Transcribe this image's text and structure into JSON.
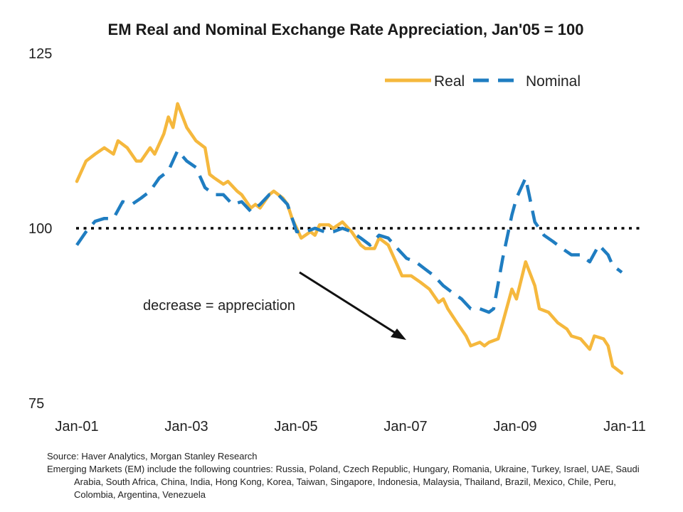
{
  "chart_data": {
    "type": "line",
    "title": "EM Real and Nominal Exchange Rate Appreciation, Jan'05 = 100",
    "xlabel": "",
    "ylabel": "",
    "x_ticks": [
      "Jan-01",
      "Jan-03",
      "Jan-05",
      "Jan-07",
      "Jan-09",
      "Jan-11"
    ],
    "xlim": [
      "Jan-01",
      "Jan-11"
    ],
    "y_ticks": [
      "75",
      "100",
      "125"
    ],
    "ylim": [
      75,
      125
    ],
    "reference_line": {
      "value": 100,
      "style": "dotted",
      "color": "#000000"
    },
    "legend": {
      "position": "top-right",
      "entries": [
        "Real",
        "Nominal"
      ]
    },
    "annotation": {
      "text": "decrease = appreciation",
      "arrow": "pointing down-right"
    },
    "series": [
      {
        "name": "Real",
        "color": "#F5B83D",
        "style": "solid",
        "points": [
          [
            "2001-01",
            106.7
          ],
          [
            "2001-03",
            109.6
          ],
          [
            "2001-05",
            110.6
          ],
          [
            "2001-07",
            111.5
          ],
          [
            "2001-09",
            110.6
          ],
          [
            "2001-10",
            112.5
          ],
          [
            "2001-12",
            111.5
          ],
          [
            "2002-02",
            109.6
          ],
          [
            "2002-03",
            109.6
          ],
          [
            "2002-05",
            111.5
          ],
          [
            "2002-06",
            110.6
          ],
          [
            "2002-08",
            113.5
          ],
          [
            "2002-09",
            115.9
          ],
          [
            "2002-10",
            114.4
          ],
          [
            "2002-11",
            117.8
          ],
          [
            "2003-01",
            114.4
          ],
          [
            "2003-03",
            112.5
          ],
          [
            "2003-05",
            111.5
          ],
          [
            "2003-06",
            107.7
          ],
          [
            "2003-07",
            107.2
          ],
          [
            "2003-09",
            106.3
          ],
          [
            "2003-10",
            106.7
          ],
          [
            "2003-12",
            105.3
          ],
          [
            "2004-01",
            104.8
          ],
          [
            "2004-03",
            102.9
          ],
          [
            "2004-04",
            103.4
          ],
          [
            "2004-05",
            102.9
          ],
          [
            "2004-07",
            104.8
          ],
          [
            "2004-08",
            105.3
          ],
          [
            "2004-10",
            104.3
          ],
          [
            "2004-11",
            103.4
          ],
          [
            "2004-12",
            101.4
          ],
          [
            "2005-01",
            100.0
          ],
          [
            "2005-02",
            98.6
          ],
          [
            "2005-04",
            99.5
          ],
          [
            "2005-05",
            99.0
          ],
          [
            "2005-06",
            100.5
          ],
          [
            "2005-08",
            100.5
          ],
          [
            "2005-09",
            100.0
          ],
          [
            "2005-11",
            100.9
          ],
          [
            "2006-01",
            99.5
          ],
          [
            "2006-03",
            97.6
          ],
          [
            "2006-04",
            97.1
          ],
          [
            "2006-06",
            97.1
          ],
          [
            "2006-07",
            98.6
          ],
          [
            "2006-09",
            97.6
          ],
          [
            "2006-11",
            94.7
          ],
          [
            "2006-12",
            93.2
          ],
          [
            "2007-02",
            93.2
          ],
          [
            "2007-04",
            92.3
          ],
          [
            "2007-06",
            91.3
          ],
          [
            "2007-08",
            89.4
          ],
          [
            "2007-09",
            89.9
          ],
          [
            "2007-10",
            88.5
          ],
          [
            "2007-12",
            86.5
          ],
          [
            "2008-02",
            84.6
          ],
          [
            "2008-03",
            83.2
          ],
          [
            "2008-05",
            83.7
          ],
          [
            "2008-06",
            83.2
          ],
          [
            "2008-07",
            83.7
          ],
          [
            "2008-09",
            84.2
          ],
          [
            "2008-10",
            86.5
          ],
          [
            "2008-12",
            91.3
          ],
          [
            "2009-01",
            89.9
          ],
          [
            "2009-03",
            95.2
          ],
          [
            "2009-05",
            91.8
          ],
          [
            "2009-06",
            88.5
          ],
          [
            "2009-08",
            88.0
          ],
          [
            "2009-10",
            86.5
          ],
          [
            "2009-12",
            85.6
          ],
          [
            "2010-01",
            84.6
          ],
          [
            "2010-03",
            84.2
          ],
          [
            "2010-05",
            82.7
          ],
          [
            "2010-06",
            84.6
          ],
          [
            "2010-08",
            84.2
          ],
          [
            "2010-09",
            83.2
          ],
          [
            "2010-10",
            80.3
          ],
          [
            "2010-12",
            79.3
          ]
        ]
      },
      {
        "name": "Nominal",
        "color": "#1F7DC1",
        "style": "dashed",
        "points": [
          [
            "2001-01",
            97.6
          ],
          [
            "2001-03",
            99.5
          ],
          [
            "2001-05",
            101.0
          ],
          [
            "2001-07",
            101.4
          ],
          [
            "2001-09",
            101.4
          ],
          [
            "2001-11",
            103.8
          ],
          [
            "2002-01",
            103.4
          ],
          [
            "2002-03",
            104.3
          ],
          [
            "2002-05",
            105.3
          ],
          [
            "2002-07",
            107.2
          ],
          [
            "2002-09",
            108.2
          ],
          [
            "2002-11",
            111.1
          ],
          [
            "2003-01",
            109.6
          ],
          [
            "2003-03",
            108.7
          ],
          [
            "2003-05",
            105.8
          ],
          [
            "2003-07",
            104.8
          ],
          [
            "2003-09",
            104.8
          ],
          [
            "2003-11",
            103.4
          ],
          [
            "2004-01",
            103.8
          ],
          [
            "2004-03",
            102.4
          ],
          [
            "2004-05",
            103.4
          ],
          [
            "2004-07",
            104.8
          ],
          [
            "2004-09",
            104.8
          ],
          [
            "2004-11",
            103.4
          ],
          [
            "2005-01",
            99.5
          ],
          [
            "2005-03",
            99.5
          ],
          [
            "2005-05",
            100.0
          ],
          [
            "2005-07",
            99.5
          ],
          [
            "2005-09",
            99.5
          ],
          [
            "2005-11",
            100.0
          ],
          [
            "2006-01",
            99.5
          ],
          [
            "2006-03",
            98.6
          ],
          [
            "2006-05",
            97.6
          ],
          [
            "2006-07",
            99.0
          ],
          [
            "2006-09",
            98.6
          ],
          [
            "2006-11",
            97.1
          ],
          [
            "2007-01",
            95.7
          ],
          [
            "2007-03",
            95.2
          ],
          [
            "2007-05",
            94.2
          ],
          [
            "2007-07",
            93.2
          ],
          [
            "2007-09",
            91.8
          ],
          [
            "2007-11",
            90.8
          ],
          [
            "2008-01",
            89.9
          ],
          [
            "2008-03",
            88.5
          ],
          [
            "2008-05",
            88.5
          ],
          [
            "2008-07",
            88.0
          ],
          [
            "2008-08",
            88.5
          ],
          [
            "2008-10",
            95.7
          ],
          [
            "2008-12",
            101.9
          ],
          [
            "2009-01",
            104.3
          ],
          [
            "2009-03",
            107.2
          ],
          [
            "2009-05",
            100.9
          ],
          [
            "2009-07",
            99.0
          ],
          [
            "2009-09",
            98.1
          ],
          [
            "2009-11",
            97.1
          ],
          [
            "2010-01",
            96.2
          ],
          [
            "2010-03",
            96.2
          ],
          [
            "2010-05",
            95.2
          ],
          [
            "2010-07",
            97.6
          ],
          [
            "2010-09",
            96.2
          ],
          [
            "2010-10",
            94.7
          ],
          [
            "2010-12",
            93.7
          ]
        ]
      }
    ]
  },
  "notes": {
    "source": "Source: Haver Analytics, Morgan Stanley Research",
    "countries": "Emerging Markets (EM) include the following countries: Russia, Poland, Czech Republic, Hungary, Romania, Ukraine, Turkey, Israel, UAE, Saudi Arabia, South Africa, China, India, Hong Kong, Korea, Taiwan, Singapore, Indonesia, Malaysia, Thailand, Brazil, Mexico, Chile, Peru, Colombia, Argentina, Venezuela"
  }
}
